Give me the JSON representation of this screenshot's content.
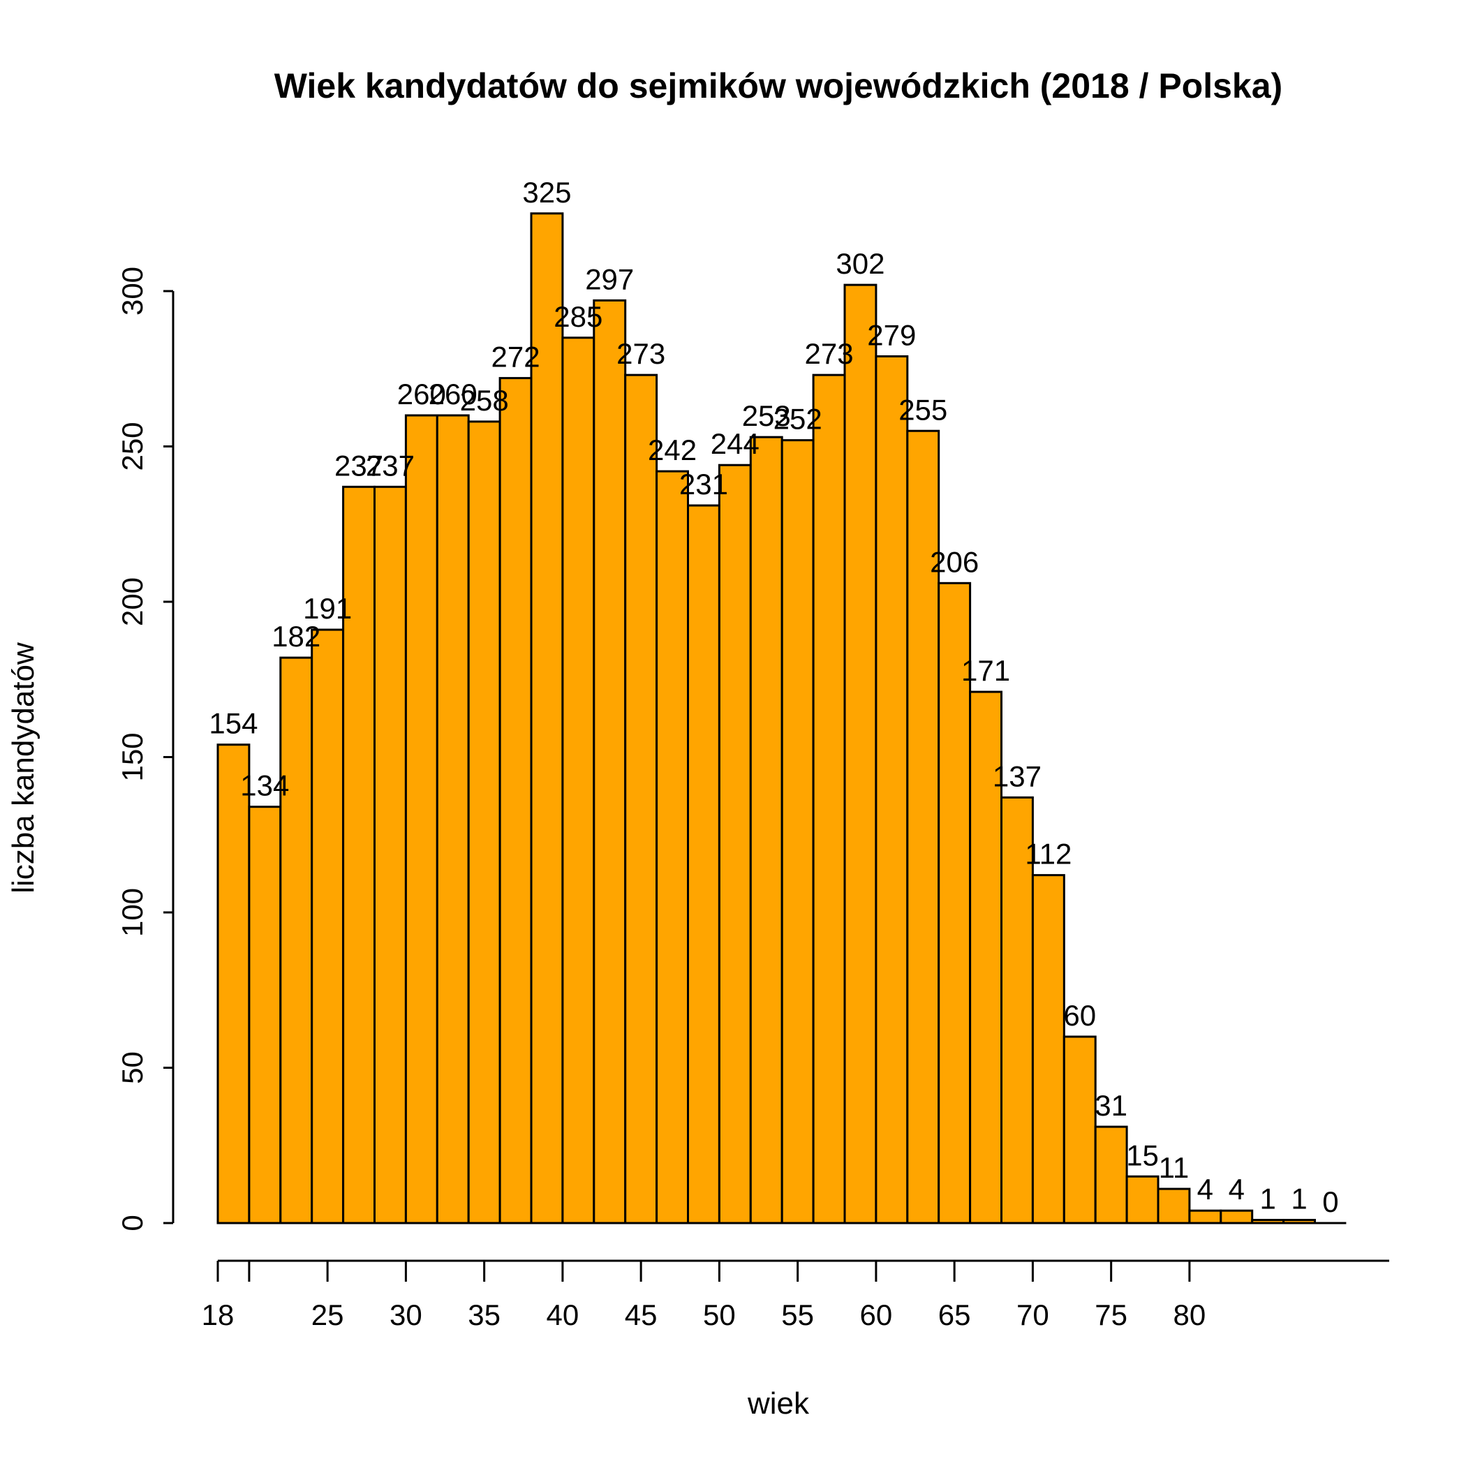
{
  "chart_data": {
    "type": "bar",
    "title": "Wiek kandydatów do sejmików wojewódzkich (2018 / Polska)",
    "xlabel": "wiek",
    "ylabel": "liczba kandydatów",
    "bar_color": "#FFA500",
    "border_color": "#000000",
    "bin_width": 2,
    "x_start": 18,
    "values": [
      154,
      134,
      182,
      191,
      237,
      237,
      260,
      260,
      258,
      272,
      325,
      285,
      297,
      273,
      242,
      231,
      244,
      253,
      252,
      273,
      302,
      279,
      255,
      206,
      171,
      137,
      112,
      60,
      31,
      15,
      11,
      4,
      4,
      1,
      1,
      0
    ],
    "labels": [
      "154",
      "134",
      "182",
      "191",
      "237",
      "237",
      "260",
      "260",
      "258",
      "272",
      "325",
      "285",
      "297",
      "273",
      "242",
      "231",
      "244",
      "253",
      "252",
      "273",
      "302",
      "279",
      "255",
      "206",
      "171",
      "137",
      "112",
      "60",
      "31",
      "15",
      "11",
      "4",
      "4",
      "1",
      "1",
      "0"
    ],
    "ylim": [
      0,
      300
    ],
    "y_ticks": [
      0,
      50,
      100,
      150,
      200,
      250,
      300
    ],
    "y_tick_labels": [
      "0",
      "50",
      "100",
      "150",
      "200",
      "250",
      "300"
    ],
    "x_ticks": [
      18,
      20,
      25,
      30,
      35,
      40,
      45,
      50,
      55,
      60,
      65,
      70,
      75,
      80
    ],
    "x_tick_labels": [
      "18",
      "",
      "25",
      "30",
      "35",
      "40",
      "45",
      "50",
      "55",
      "60",
      "65",
      "70",
      "75",
      "80"
    ],
    "grid": false,
    "legend": "none"
  }
}
